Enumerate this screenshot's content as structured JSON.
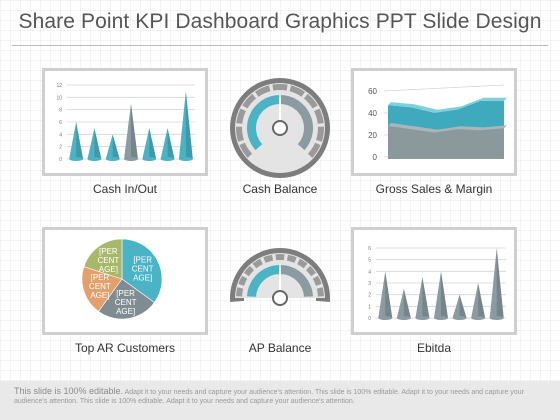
{
  "slide": {
    "title": "Share Point KPI Dashboard Graphics PPT Slide Design"
  },
  "panels": {
    "cash_in_out": {
      "caption": "Cash In/Out"
    },
    "cash_balance": {
      "caption": "Cash Balance"
    },
    "gross_sales": {
      "caption": "Gross Sales & Margin"
    },
    "top_ar": {
      "caption": "Top AR Customers"
    },
    "ap_balance": {
      "caption": "AP Balance"
    },
    "ebitda": {
      "caption": "Ebitda"
    }
  },
  "footer": {
    "lead": "This slide is 100% editable.",
    "text": "Adapt it to your needs and capture your audience's attention. This slide is 100% editable. Adapt it to your needs and capture your audience's attention. This slide is 100% editable. Adapt it to your needs and capture your audience's attention."
  },
  "colors": {
    "teal": "#4bb3c6",
    "gray": "#8a9ba1",
    "olive": "#a8b86a",
    "orange": "#e4a06b"
  },
  "chart_data": [
    {
      "type": "bar",
      "title": "Cash In/Out",
      "ylim": [
        0,
        12
      ],
      "yticks": [
        "0",
        "2",
        "4",
        "6",
        "8",
        "10",
        "12"
      ],
      "values": [
        6,
        5,
        4,
        9,
        5,
        5,
        11
      ],
      "colors": [
        "#4bb3c6",
        "#4bb3c6",
        "#4bb3c6",
        "#8a9ba1",
        "#4bb3c6",
        "#4bb3c6",
        "#4bb3c6"
      ],
      "grid": true
    },
    {
      "type": "area",
      "title": "Gross Sales & Margin",
      "ylim": [
        0,
        60
      ],
      "yticks": [
        "0",
        "20",
        "40",
        "60"
      ],
      "series": [
        {
          "values": [
            49,
            47,
            42,
            45,
            53,
            53
          ]
        },
        {
          "values": [
            30,
            27,
            24,
            27,
            26,
            28
          ]
        }
      ],
      "grid": true
    },
    {
      "type": "pie",
      "title": "Top AR Customers",
      "slices": [
        {
          "label": "[PER CENT AGE]",
          "value": 35
        },
        {
          "label": "[PER CENT AGE]",
          "value": 25
        },
        {
          "label": "[PER CENT AGE]",
          "value": 20
        },
        {
          "label": "[PER CENT AGE]",
          "value": 20
        }
      ]
    },
    {
      "type": "bar",
      "title": "Ebitda",
      "ylim": [
        0,
        6
      ],
      "yticks": [
        "0",
        "1",
        "2",
        "3",
        "4",
        "5",
        "6"
      ],
      "values": [
        4,
        2.5,
        3.5,
        4,
        2,
        3,
        6
      ],
      "grid": true
    }
  ],
  "gauges": {
    "cash_balance": {
      "value": 0.5
    },
    "ap_balance": {
      "value": 0.5
    }
  }
}
